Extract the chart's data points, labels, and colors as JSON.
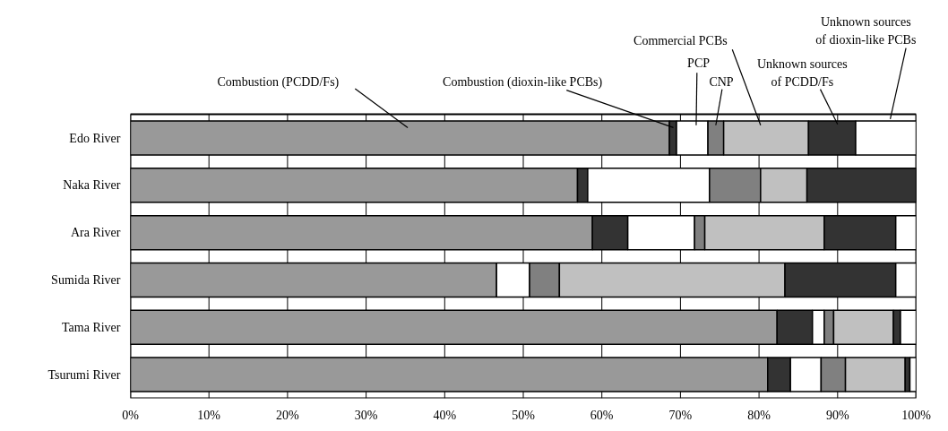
{
  "chart_data": {
    "type": "bar",
    "orientation": "horizontal",
    "stacked": true,
    "legend": false,
    "grid": "x",
    "categories": [
      "Edo River",
      "Naka River",
      "Ara River",
      "Sumida River",
      "Tama River",
      "Tsurumi River"
    ],
    "xlim": [
      0,
      100
    ],
    "xticks": [
      {
        "value": 0,
        "label": "0%"
      },
      {
        "value": 10,
        "label": "10%"
      },
      {
        "value": 20,
        "label": "20%"
      },
      {
        "value": 30,
        "label": "30%"
      },
      {
        "value": 40,
        "label": "40%"
      },
      {
        "value": 50,
        "label": "50%"
      },
      {
        "value": 60,
        "label": "60%"
      },
      {
        "value": 70,
        "label": "70%"
      },
      {
        "value": 80,
        "label": "80%"
      },
      {
        "value": 90,
        "label": "90%"
      },
      {
        "value": 100,
        "label": "100%"
      }
    ],
    "series": [
      {
        "name": "Combustion (PCDD/Fs)",
        "color": "#999999",
        "values": [
          68.6,
          56.9,
          58.8,
          46.6,
          82.3,
          81.1
        ]
      },
      {
        "name": "Combustion (dioxin-like PCBs)",
        "color": "#333333",
        "values": [
          0.9,
          1.3,
          4.5,
          0,
          4.5,
          2.9
        ]
      },
      {
        "name": "PCP",
        "color": "#ffffff",
        "values": [
          4.0,
          15.5,
          8.5,
          4.2,
          1.5,
          3.9
        ]
      },
      {
        "name": "CNP",
        "color": "#808080",
        "values": [
          2.0,
          6.5,
          1.3,
          3.8,
          1.2,
          3.1
        ]
      },
      {
        "name": "Commercial PCBs",
        "color": "#c0c0c0",
        "values": [
          10.8,
          5.9,
          15.2,
          28.7,
          7.6,
          7.6
        ]
      },
      {
        "name": "Unknown sources\nof PCDD/Fs",
        "color": "#333333",
        "values": [
          6.0,
          13.9,
          9.1,
          14.1,
          0.9,
          0.6
        ]
      },
      {
        "name": "Unknown sources\nof dioxin-like PCBs",
        "color": "#ffffff",
        "values": [
          7.7,
          0,
          2.6,
          2.6,
          2.0,
          0.8
        ]
      }
    ]
  }
}
